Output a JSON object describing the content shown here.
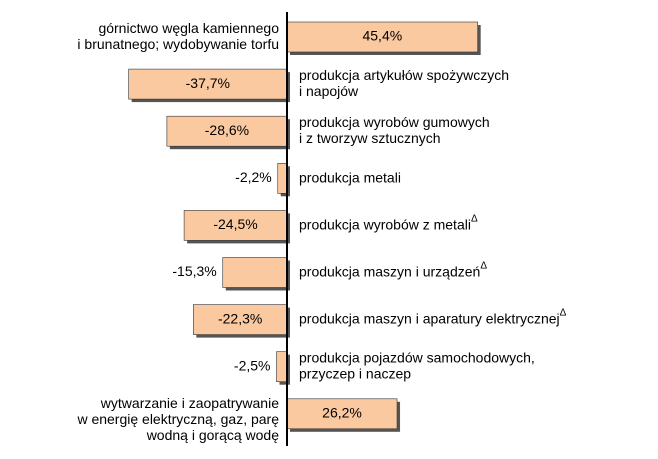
{
  "chart_data": {
    "type": "bar",
    "orientation": "horizontal",
    "categories": [
      [
        "górnictwo węgla kamiennego",
        "i brunatnego; wydobywanie torfu"
      ],
      [
        "produkcja artykułów spożywczych",
        "i napojów"
      ],
      [
        "produkcja wyrobów gumowych",
        "i z tworzyw sztucznych"
      ],
      [
        "produkcja metali"
      ],
      [
        "produkcja wyrobów z metali"
      ],
      [
        "produkcja maszyn i urządzeń"
      ],
      [
        "produkcja maszyn i aparatury elektrycznej"
      ],
      [
        "produkcja pojazdów samochodowych,",
        "przyczep i naczep"
      ],
      [
        "wytwarzanie i zaopatrywanie",
        "w energię elektryczną, gaz, parę",
        "wodną i gorącą wodę"
      ]
    ],
    "superscripts": [
      null,
      null,
      null,
      null,
      "Δ",
      "Δ",
      "Δ",
      null,
      null
    ],
    "values": [
      45.4,
      -37.7,
      -28.6,
      -2.2,
      -24.5,
      -15.3,
      -22.3,
      -2.5,
      26.2
    ],
    "value_labels": [
      "45,4%",
      "-37,7%",
      "-28,6%",
      "-2,2%",
      "-24,5%",
      "-15,3%",
      "-22,3%",
      "-2,5%",
      "26,2%"
    ],
    "color": "#fbc9a0",
    "xlim": [
      -40,
      50
    ]
  }
}
